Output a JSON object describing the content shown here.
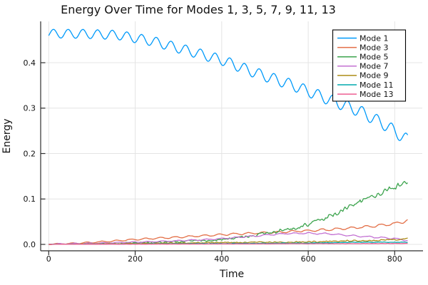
{
  "chart_data": {
    "type": "line",
    "title": "Energy Over Time for Modes 1, 3, 5, 7, 9, 11, 13",
    "xlabel": "Time",
    "ylabel": "Energy",
    "xlim": [
      -18.6,
      863.8
    ],
    "ylim": [
      -0.0141,
      0.491
    ],
    "grid": true,
    "legend_position": "top-right",
    "seed": 1337,
    "xticks": {
      "values": [
        0,
        200,
        400,
        600,
        800
      ],
      "labels": [
        "0",
        "200",
        "400",
        "600",
        "800"
      ]
    },
    "yticks": {
      "values": [
        0.0,
        0.1,
        0.2,
        0.3,
        0.4
      ],
      "labels": [
        "0.0",
        "0.1",
        "0.2",
        "0.3",
        "0.4"
      ]
    },
    "series": [
      {
        "name": "Mode 1",
        "color": "#009AFA",
        "mean": [
          [
            0,
            0.464
          ],
          [
            80,
            0.4635
          ],
          [
            160,
            0.461
          ],
          [
            240,
            0.4475
          ],
          [
            320,
            0.427
          ],
          [
            400,
            0.406
          ],
          [
            480,
            0.377
          ],
          [
            560,
            0.352
          ],
          [
            640,
            0.322
          ],
          [
            720,
            0.293
          ],
          [
            780,
            0.262
          ],
          [
            832,
            0.228
          ]
        ],
        "osc": {
          "amp0": 0.0095,
          "amp1": 0.0135,
          "period": 34,
          "peak": 11
        }
      },
      {
        "name": "Mode 3",
        "color": "#E36F47",
        "mean": [
          [
            0,
            0.0005
          ],
          [
            50,
            0.002
          ],
          [
            100,
            0.0045
          ],
          [
            150,
            0.0075
          ],
          [
            200,
            0.011
          ],
          [
            260,
            0.014
          ],
          [
            320,
            0.017
          ],
          [
            400,
            0.0215
          ],
          [
            480,
            0.025
          ],
          [
            560,
            0.0285
          ],
          [
            640,
            0.032
          ],
          [
            700,
            0.036
          ],
          [
            760,
            0.041
          ],
          [
            800,
            0.046
          ],
          [
            820,
            0.05
          ],
          [
            832,
            0.054
          ]
        ],
        "osc": {
          "amp0": 0.0012,
          "amp1": 0.0026,
          "period": 34,
          "peak": 20
        },
        "noise": {
          "amp0": 0.0003,
          "amp1": 0.001
        }
      },
      {
        "name": "Mode 5",
        "color": "#3DA44E",
        "mean": [
          [
            0,
            0.0002
          ],
          [
            100,
            0.0015
          ],
          [
            200,
            0.0035
          ],
          [
            300,
            0.006
          ],
          [
            400,
            0.011
          ],
          [
            450,
            0.016
          ],
          [
            500,
            0.024
          ],
          [
            550,
            0.032
          ],
          [
            600,
            0.043
          ],
          [
            650,
            0.062
          ],
          [
            700,
            0.085
          ],
          [
            750,
            0.105
          ],
          [
            795,
            0.124
          ],
          [
            832,
            0.139
          ]
        ],
        "noise": {
          "amp0": 0.0004,
          "amp1": 0.0075
        }
      },
      {
        "name": "Mode 7",
        "color": "#C371D2",
        "mean": [
          [
            0,
            0.0005
          ],
          [
            100,
            0.0025
          ],
          [
            200,
            0.005
          ],
          [
            300,
            0.008
          ],
          [
            360,
            0.0105
          ],
          [
            420,
            0.014
          ],
          [
            470,
            0.018
          ],
          [
            520,
            0.022
          ],
          [
            560,
            0.0242
          ],
          [
            600,
            0.0245
          ],
          [
            640,
            0.0235
          ],
          [
            680,
            0.021
          ],
          [
            720,
            0.018
          ],
          [
            760,
            0.0155
          ],
          [
            800,
            0.013
          ],
          [
            832,
            0.0085
          ]
        ],
        "osc": {
          "amp0": 0.0008,
          "amp1": 0.0016,
          "period": 34,
          "peak": 25
        },
        "noise": {
          "amp0": 0.0003,
          "amp1": 0.001
        }
      },
      {
        "name": "Mode 9",
        "color": "#AC8D18",
        "mean": [
          [
            0,
            0.0003
          ],
          [
            100,
            0.001
          ],
          [
            200,
            0.002
          ],
          [
            300,
            0.003
          ],
          [
            400,
            0.004
          ],
          [
            500,
            0.0045
          ],
          [
            600,
            0.0055
          ],
          [
            650,
            0.006
          ],
          [
            700,
            0.008
          ],
          [
            750,
            0.009
          ],
          [
            800,
            0.011
          ],
          [
            820,
            0.0125
          ],
          [
            832,
            0.015
          ]
        ],
        "noise": {
          "amp0": 0.0004,
          "amp1": 0.0024
        }
      },
      {
        "name": "Mode 11",
        "color": "#00AAAE",
        "mean": [
          [
            0,
            0.0002
          ],
          [
            200,
            0.001
          ],
          [
            400,
            0.002
          ],
          [
            600,
            0.003
          ],
          [
            700,
            0.0045
          ],
          [
            780,
            0.005
          ],
          [
            832,
            0.0045
          ]
        ],
        "noise": {
          "amp0": 0.0003,
          "amp1": 0.0009
        }
      },
      {
        "name": "Mode 13",
        "color": "#ED5F92",
        "mean": [
          [
            0,
            0.0002
          ],
          [
            200,
            0.0006
          ],
          [
            400,
            0.001
          ],
          [
            600,
            0.0015
          ],
          [
            800,
            0.002
          ],
          [
            832,
            0.002
          ]
        ],
        "noise": {
          "amp0": 0.0002,
          "amp1": 0.0005
        }
      }
    ]
  }
}
